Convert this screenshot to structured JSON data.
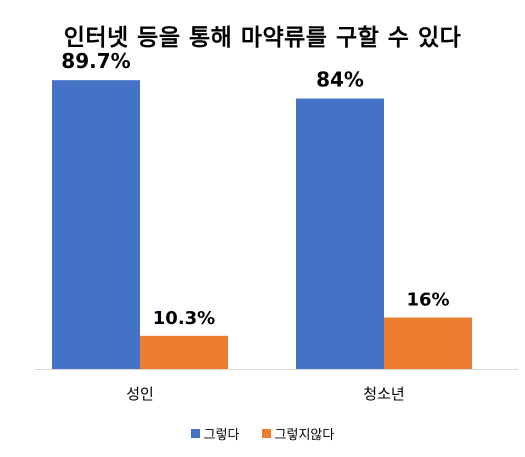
{
  "chart_data": {
    "type": "bar",
    "title": "인터넷 등을 통해 마약류를 구할 수 있다",
    "categories": [
      "성인",
      "청소년"
    ],
    "series": [
      {
        "name": "그렇다",
        "values": [
          89.7,
          84
        ],
        "labels": [
          "89.7%",
          "84%"
        ],
        "color": "#4472C4"
      },
      {
        "name": "그렇지않다",
        "values": [
          10.3,
          16
        ],
        "labels": [
          "10.3%",
          "16%"
        ],
        "color": "#ED7D31"
      }
    ],
    "ylim": [
      0,
      100
    ],
    "grid": false,
    "legend": "bottom"
  }
}
